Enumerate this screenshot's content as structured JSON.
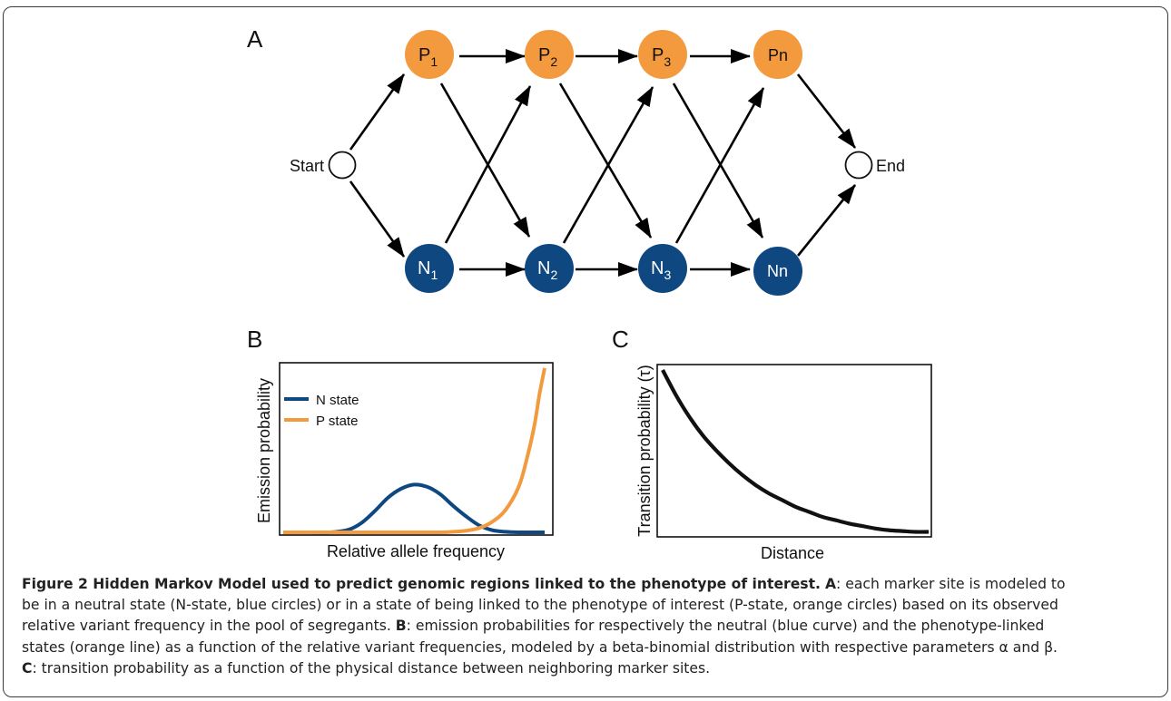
{
  "panel_labels": {
    "a": "A",
    "b": "B",
    "c": "C"
  },
  "colors": {
    "p_state": "#F39A3F",
    "n_state": "#0F4881",
    "arrow": "#000000",
    "frame": "#3a3a3a"
  },
  "panel_a": {
    "start_label": "Start",
    "end_label": "End",
    "p_nodes": [
      {
        "base": "P",
        "sub": "1"
      },
      {
        "base": "P",
        "sub": "2"
      },
      {
        "base": "P",
        "sub": "3"
      },
      {
        "base": "P",
        "sub": "n"
      }
    ],
    "n_nodes": [
      {
        "base": "N",
        "sub": "1"
      },
      {
        "base": "N",
        "sub": "2"
      },
      {
        "base": "N",
        "sub": "3"
      },
      {
        "base": "N",
        "sub": "n"
      }
    ]
  },
  "chart_data": [
    {
      "type": "line",
      "xlabel": "Relative allele frequency",
      "ylabel": "Emission probability",
      "legend_position": "top-left",
      "series": [
        {
          "name": "N state",
          "color": "#0F4881",
          "x": [
            0,
            0.1,
            0.18,
            0.25,
            0.3,
            0.35,
            0.4,
            0.45,
            0.5,
            0.55,
            0.6,
            0.65,
            0.7,
            0.75,
            0.8,
            0.85,
            0.9,
            0.95,
            1.0
          ],
          "y": [
            0,
            0,
            0.0,
            0.05,
            0.18,
            0.4,
            0.65,
            0.82,
            0.9,
            0.86,
            0.72,
            0.5,
            0.3,
            0.13,
            0.04,
            0.01,
            0,
            0,
            0
          ]
        },
        {
          "name": "P state",
          "color": "#F39A3F",
          "x": [
            0,
            0.2,
            0.4,
            0.5,
            0.6,
            0.65,
            0.7,
            0.75,
            0.8,
            0.85,
            0.9,
            0.93,
            0.96,
            0.98,
            1.0
          ],
          "y": [
            0,
            0,
            0,
            0,
            0.0,
            0.01,
            0.03,
            0.08,
            0.2,
            0.42,
            0.85,
            1.35,
            2.0,
            2.6,
            3.1
          ]
        }
      ]
    },
    {
      "type": "line",
      "xlabel": "Distance",
      "ylabel": "Transition probability (τ)",
      "series": [
        {
          "color": "#111111",
          "x": [
            0,
            0.05,
            0.1,
            0.15,
            0.2,
            0.25,
            0.3,
            0.35,
            0.4,
            0.45,
            0.5,
            0.55,
            0.6,
            0.65,
            0.7,
            0.75,
            0.8,
            0.85,
            0.9,
            0.95,
            1.0
          ],
          "y": [
            1.0,
            0.85,
            0.72,
            0.61,
            0.52,
            0.44,
            0.37,
            0.31,
            0.26,
            0.22,
            0.18,
            0.15,
            0.12,
            0.1,
            0.08,
            0.065,
            0.05,
            0.04,
            0.035,
            0.03,
            0.03
          ]
        }
      ]
    }
  ],
  "caption": {
    "title": "Figure 2 Hidden Markov Model used to predict genomic regions linked to the phenotype of interest.",
    "a_label": "A",
    "a_text_1": ": each marker site is modeled to",
    "a_text_2": "be in a neutral state (N-state, blue circles) or in a state of being linked to the phenotype of interest (P-state, orange circles) based on its observed",
    "a_text_3": "relative variant frequency in the pool of segregants.",
    "b_label": "B",
    "b_text_1": ": emission probabilities for respectively the neutral (blue curve) and the phenotype-linked",
    "b_text_2": "states (orange line) as a function of the relative variant frequencies, modeled by a beta-binomial distribution with respective parameters α and β.",
    "c_label": "C",
    "c_text": ": transition probability as a function of the physical distance between neighboring marker sites."
  }
}
